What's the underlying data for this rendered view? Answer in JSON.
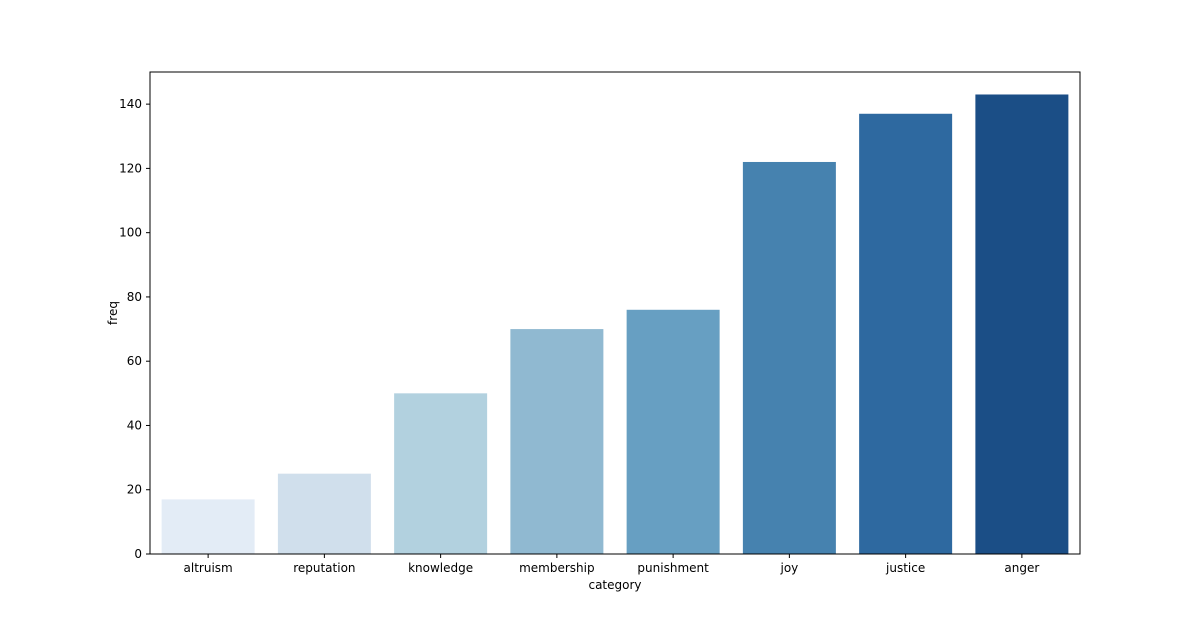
{
  "chart_data": {
    "type": "bar",
    "categories": [
      "altruism",
      "reputation",
      "knowledge",
      "membership",
      "punishment",
      "joy",
      "justice",
      "anger"
    ],
    "values": [
      17,
      25,
      50,
      70,
      76,
      122,
      137,
      143
    ],
    "colors": [
      "#e3ecf6",
      "#d0dfec",
      "#b2d1df",
      "#90b9d1",
      "#679fc2",
      "#4682af",
      "#2e69a0",
      "#1b4e86"
    ],
    "xlabel": "category",
    "ylabel": "freq",
    "ylim": [
      0,
      150
    ],
    "yticks": [
      0,
      20,
      40,
      60,
      80,
      100,
      120,
      140
    ],
    "grid": false,
    "legend": "none"
  }
}
